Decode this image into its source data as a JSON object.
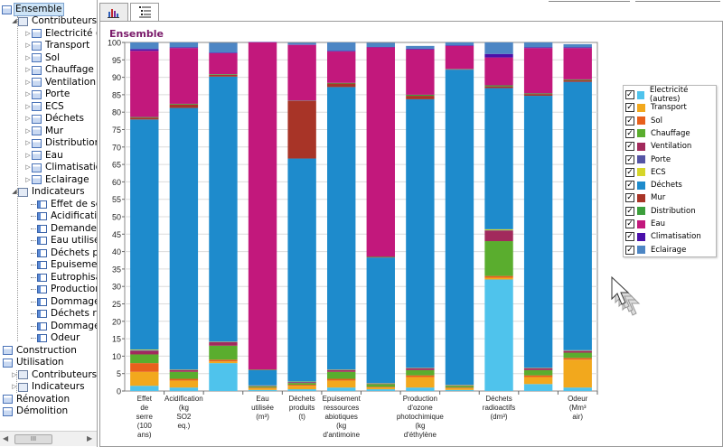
{
  "tree": {
    "root_label": "Ensemble",
    "items": [
      {
        "label": "Contributeurs",
        "level": 1,
        "kind": "group"
      },
      {
        "label": "Electricité (au",
        "level": 2
      },
      {
        "label": "Transport",
        "level": 2
      },
      {
        "label": "Sol",
        "level": 2
      },
      {
        "label": "Chauffage",
        "level": 2
      },
      {
        "label": "Ventilation",
        "level": 2
      },
      {
        "label": "Porte",
        "level": 2
      },
      {
        "label": "ECS",
        "level": 2
      },
      {
        "label": "Déchets",
        "level": 2
      },
      {
        "label": "Mur",
        "level": 2
      },
      {
        "label": "Distribution",
        "level": 2
      },
      {
        "label": "Eau",
        "level": 2
      },
      {
        "label": "Climatisation",
        "level": 2
      },
      {
        "label": "Eclairage",
        "level": 2
      },
      {
        "label": "Indicateurs",
        "level": 1,
        "kind": "group"
      },
      {
        "label": "Effet de serr",
        "level": 3
      },
      {
        "label": "Acidification",
        "level": 3
      },
      {
        "label": "Demande cu",
        "level": 3
      },
      {
        "label": "Eau utilisée",
        "level": 3
      },
      {
        "label": "Déchets prod",
        "level": 3
      },
      {
        "label": "Epuisement r",
        "level": 3
      },
      {
        "label": "Eutrophisatio",
        "level": 3
      },
      {
        "label": "Production d",
        "level": 3
      },
      {
        "label": "Dommage à l",
        "level": 3
      },
      {
        "label": "Déchets radi",
        "level": 3
      },
      {
        "label": "Dommage à l",
        "level": 3
      },
      {
        "label": "Odeur",
        "level": 3
      },
      {
        "label": "Construction",
        "level": 0
      },
      {
        "label": "Utilisation",
        "level": 0
      },
      {
        "label": "Contributeurs",
        "level": 1,
        "kind": "group"
      },
      {
        "label": "Indicateurs",
        "level": 1,
        "kind": "group"
      },
      {
        "label": "Rénovation",
        "level": 0
      },
      {
        "label": "Démolition",
        "level": 0
      }
    ],
    "scroll_grip": "III"
  },
  "tabs": [
    {
      "name": "chart-tab",
      "icon": "bar-chart-icon",
      "active": false
    },
    {
      "name": "list-tab",
      "icon": "list-icon",
      "active": true
    }
  ],
  "chart_data": {
    "type": "bar",
    "stacked": true,
    "title": "Ensemble",
    "ylim": [
      0,
      100
    ],
    "yticks": [
      0,
      5,
      10,
      15,
      20,
      25,
      30,
      35,
      40,
      45,
      50,
      55,
      60,
      65,
      70,
      75,
      80,
      85,
      90,
      95,
      100
    ],
    "grid": true,
    "legend_position": "right",
    "categories": [
      "Effet de serre (100 ans)",
      "Acidification (kg SO2 eq.)",
      "",
      "Eau utilisée (m³)",
      "Déchets produits (t)",
      "Epuisement ressources abiotiques (kg d'antimoine",
      "",
      "Production d'ozone photochimique (kg d'éthylène",
      "",
      "Déchets radioactifs (dm³)",
      "",
      "Odeur (Mm³ air)"
    ],
    "category_lines": [
      [
        "Effet",
        "de",
        "serre",
        "(100",
        "ans)"
      ],
      [
        "Acidification",
        "(kg",
        "SO2",
        "eq.)"
      ],
      [],
      [
        "Eau",
        "utilisée",
        "(m³)"
      ],
      [
        "Déchets",
        "produits",
        "(t)"
      ],
      [
        "Epuisement",
        "ressources",
        "abiotiques",
        "(kg",
        "d'antimoine"
      ],
      [],
      [
        "Production",
        "d'ozone",
        "photochimique",
        "(kg",
        "d'éthylène"
      ],
      [],
      [
        "Déchets",
        "radioactifs",
        "(dm³)"
      ],
      [],
      [
        "Odeur",
        "(Mm³",
        "air)"
      ]
    ],
    "series": [
      {
        "name": "Electricité (autres)",
        "color": "#4fc3ec",
        "values": [
          1.5,
          1,
          8,
          0.3,
          0.5,
          1,
          0.5,
          1,
          0.3,
          32,
          2,
          1
        ]
      },
      {
        "name": "Transport",
        "color": "#f2a81d",
        "values": [
          4,
          2,
          0.5,
          0.5,
          1,
          2,
          0.5,
          3,
          0.5,
          0.5,
          2,
          8
        ]
      },
      {
        "name": "Sol",
        "color": "#e8601c",
        "values": [
          2.5,
          0.5,
          0.5,
          0.2,
          0.3,
          0.5,
          0.2,
          0.5,
          0.2,
          0.5,
          0.5,
          0.5
        ]
      },
      {
        "name": "Chauffage",
        "color": "#5aad2e",
        "values": [
          2.5,
          2,
          4,
          0.3,
          0.5,
          2,
          0.8,
          1.5,
          0.5,
          10,
          1.5,
          1.5
        ]
      },
      {
        "name": "Ventilation",
        "color": "#a22a5c",
        "values": [
          1,
          0.5,
          1,
          0.1,
          0.2,
          0.5,
          0.1,
          0.5,
          0.1,
          3,
          0.5,
          0.5
        ]
      },
      {
        "name": "Porte",
        "color": "#5555a5",
        "values": [
          0.2,
          0.1,
          0.1,
          0.1,
          0.1,
          0.1,
          0.1,
          0.1,
          0.1,
          0.1,
          0.1,
          0.1
        ]
      },
      {
        "name": "ECS",
        "color": "#d6d62a",
        "values": [
          0.2,
          0.1,
          0.1,
          0.1,
          0.1,
          0.1,
          0.1,
          0.1,
          0.1,
          0.3,
          0.1,
          0.1
        ]
      },
      {
        "name": "Déchets",
        "color": "#1e8bcc",
        "values": [
          66,
          75,
          76,
          4.4,
          64,
          81,
          36,
          77,
          90.4,
          40.5,
          78,
          77
        ]
      },
      {
        "name": "Mur",
        "color": "#a83427",
        "values": [
          0.5,
          1,
          0.5,
          0.1,
          16.5,
          1,
          0.2,
          1,
          0.1,
          0.5,
          0.5,
          0.5
        ]
      },
      {
        "name": "Distribution",
        "color": "#3c9f3c",
        "values": [
          0.2,
          0.2,
          0.2,
          0.1,
          0.1,
          0.2,
          0.1,
          0.3,
          0.1,
          0.3,
          0.2,
          0.2
        ]
      },
      {
        "name": "Eau",
        "color": "#c2187c",
        "values": [
          19,
          16,
          6,
          93.8,
          16,
          9,
          60,
          13,
          6.6,
          8,
          13,
          9
        ]
      },
      {
        "name": "Climatisation",
        "color": "#4a10aa",
        "values": [
          0.5,
          0.2,
          0.2,
          0.1,
          0.1,
          0.2,
          0.1,
          0.2,
          0.2,
          1,
          0.2,
          0.2
        ]
      },
      {
        "name": "Eclairage",
        "color": "#4d86c4",
        "values": [
          1.9,
          1.4,
          2.8,
          0,
          0.5,
          2.4,
          1.2,
          0.8,
          0.8,
          3.3,
          1.4,
          0.9
        ]
      }
    ]
  }
}
